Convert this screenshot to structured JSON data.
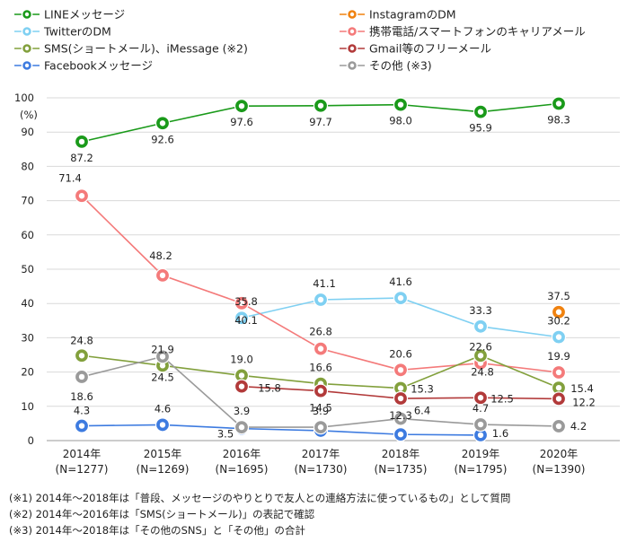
{
  "chart_data": {
    "type": "line",
    "title": "",
    "ylabel": "(%)",
    "ylim": [
      0,
      100
    ],
    "yticks": [
      0,
      10,
      20,
      30,
      40,
      50,
      60,
      70,
      80,
      90,
      100
    ],
    "grid": true,
    "legend_position": "top",
    "categories": [
      {
        "year": "2014年",
        "n": "(N=1277)"
      },
      {
        "year": "2015年",
        "n": "(N=1269)"
      },
      {
        "year": "2016年",
        "n": "(N=1695)"
      },
      {
        "year": "2017年",
        "n": "(N=1730)"
      },
      {
        "year": "2018年",
        "n": "(N=1735)"
      },
      {
        "year": "2019年",
        "n": "(N=1795)"
      },
      {
        "year": "2020年",
        "n": "(N=1390)"
      }
    ],
    "series": [
      {
        "name": "LINEメッセージ",
        "color": "#1a9a1a",
        "values": [
          87.2,
          92.6,
          97.6,
          97.7,
          98.0,
          95.9,
          98.3
        ]
      },
      {
        "name": "InstagramのDM",
        "color": "#f0820f",
        "values": [
          null,
          null,
          null,
          null,
          null,
          null,
          37.5
        ]
      },
      {
        "name": "TwitterのDM",
        "color": "#7fd0f2",
        "values": [
          null,
          null,
          35.8,
          41.1,
          41.6,
          33.3,
          30.2
        ]
      },
      {
        "name": "携帯電話/スマートフォンのキャリアメール",
        "color": "#f47a7a",
        "values": [
          71.4,
          48.2,
          40.1,
          26.8,
          20.6,
          22.6,
          19.9
        ]
      },
      {
        "name": "SMS(ショートメール)、iMessage (※2)",
        "color": "#82a03c",
        "values": [
          24.8,
          21.9,
          19.0,
          16.6,
          15.3,
          24.8,
          15.4
        ]
      },
      {
        "name": "Gmail等のフリーメール",
        "color": "#b23a3a",
        "values": [
          null,
          null,
          15.8,
          14.5,
          12.3,
          12.5,
          12.2
        ]
      },
      {
        "name": "Facebookメッセージ",
        "color": "#3d7be0",
        "values": [
          4.3,
          4.6,
          3.5,
          2.9,
          1.8,
          1.6,
          null
        ]
      },
      {
        "name": "その他 (※3)",
        "color": "#9a9a9a",
        "values": [
          18.6,
          24.5,
          3.9,
          3.9,
          6.4,
          4.7,
          4.2
        ]
      }
    ],
    "data_labels": [
      {
        "series": 0,
        "i": 0,
        "text": "87.2"
      },
      {
        "series": 0,
        "i": 1,
        "text": "92.6"
      },
      {
        "series": 0,
        "i": 2,
        "text": "97.6"
      },
      {
        "series": 0,
        "i": 3,
        "text": "97.7"
      },
      {
        "series": 0,
        "i": 4,
        "text": "98.0"
      },
      {
        "series": 0,
        "i": 5,
        "text": "95.9"
      },
      {
        "series": 0,
        "i": 6,
        "text": "98.3"
      },
      {
        "series": 1,
        "i": 6,
        "text": "37.5"
      },
      {
        "series": 2,
        "i": 2,
        "text": "35.8"
      },
      {
        "series": 2,
        "i": 3,
        "text": "41.1"
      },
      {
        "series": 2,
        "i": 4,
        "text": "41.6"
      },
      {
        "series": 2,
        "i": 5,
        "text": "33.3"
      },
      {
        "series": 2,
        "i": 6,
        "text": "30.2"
      },
      {
        "series": 3,
        "i": 0,
        "text": "71.4"
      },
      {
        "series": 3,
        "i": 1,
        "text": "48.2"
      },
      {
        "series": 3,
        "i": 2,
        "text": "40.1"
      },
      {
        "series": 3,
        "i": 3,
        "text": "26.8"
      },
      {
        "series": 3,
        "i": 4,
        "text": "20.6"
      },
      {
        "series": 3,
        "i": 5,
        "text": "22.6"
      },
      {
        "series": 3,
        "i": 6,
        "text": "19.9"
      },
      {
        "series": 4,
        "i": 0,
        "text": "24.8"
      },
      {
        "series": 4,
        "i": 1,
        "text": "21.9"
      },
      {
        "series": 4,
        "i": 2,
        "text": "19.0"
      },
      {
        "series": 4,
        "i": 3,
        "text": "16.6"
      },
      {
        "series": 4,
        "i": 4,
        "text": "15.3"
      },
      {
        "series": 4,
        "i": 5,
        "text": "24.8"
      },
      {
        "series": 4,
        "i": 6,
        "text": "15.4"
      },
      {
        "series": 5,
        "i": 2,
        "text": "15.8"
      },
      {
        "series": 5,
        "i": 3,
        "text": "14.5"
      },
      {
        "series": 5,
        "i": 4,
        "text": "12.3"
      },
      {
        "series": 5,
        "i": 5,
        "text": "12.5"
      },
      {
        "series": 5,
        "i": 6,
        "text": "12.2"
      },
      {
        "series": 6,
        "i": 0,
        "text": "4.3"
      },
      {
        "series": 6,
        "i": 1,
        "text": "4.6"
      },
      {
        "series": 6,
        "i": 2,
        "text": "3.5"
      },
      {
        "series": 6,
        "i": 5,
        "text": "1.6"
      },
      {
        "series": 7,
        "i": 0,
        "text": "18.6"
      },
      {
        "series": 7,
        "i": 1,
        "text": "24.5"
      },
      {
        "series": 7,
        "i": 2,
        "text": "3.9"
      },
      {
        "series": 7,
        "i": 3,
        "text": "3.9"
      },
      {
        "series": 7,
        "i": 4,
        "text": "6.4"
      },
      {
        "series": 7,
        "i": 5,
        "text": "4.7"
      },
      {
        "series": 7,
        "i": 6,
        "text": "4.2"
      }
    ]
  },
  "notes": [
    "(※1) 2014年～2018年は「普段、メッセージのやりとりで友人との連絡方法に使っているもの」として質問",
    "(※2) 2014年～2016年は「SMS(ショートメール)」の表記で確認",
    "(※3) 2014年～2018年は「その他のSNS」と「その他」の合計"
  ]
}
